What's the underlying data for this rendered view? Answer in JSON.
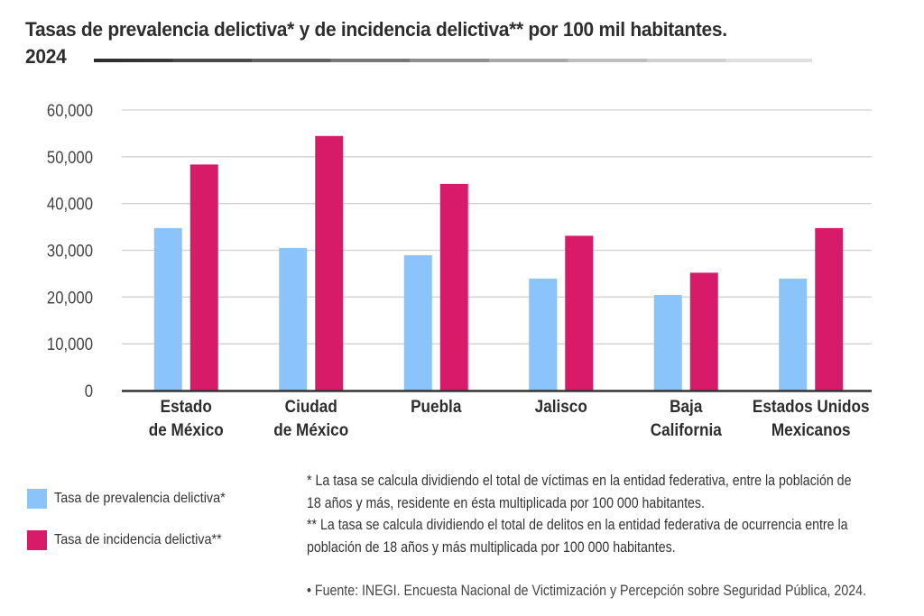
{
  "header": {
    "title": "Tasas de prevalencia delictiva* y de incidencia delictiva** por 100 mil habitantes.",
    "year": "2024"
  },
  "colors": {
    "prevalencia": "#8ac4fa",
    "incidencia": "#d81b68",
    "grid": "#d0d0d0",
    "axis": "#333333"
  },
  "chart_data": {
    "type": "bar",
    "title": "Tasas de prevalencia delictiva* y de incidencia delictiva** por 100 mil habitantes. 2024",
    "xlabel": "",
    "ylabel": "",
    "ylim": [
      0,
      60000
    ],
    "yticks": [
      0,
      10000,
      20000,
      30000,
      40000,
      50000,
      60000
    ],
    "ytick_labels": [
      "0",
      "10,000",
      "20,000",
      "30,000",
      "40,000",
      "50,000",
      "60,000"
    ],
    "grid": true,
    "legend_position": "bottom-left",
    "categories": [
      [
        "Estado",
        "de México"
      ],
      [
        "Ciudad",
        "de México"
      ],
      [
        "Puebla"
      ],
      [
        "Jalisco"
      ],
      [
        "Baja",
        "California"
      ],
      [
        "Estados Unidos",
        "Mexicanos"
      ]
    ],
    "series": [
      {
        "name": "Tasa de prevalencia delictiva*",
        "color_key": "prevalencia",
        "values": [
          34750,
          30500,
          28950,
          23950,
          20450,
          23950
        ]
      },
      {
        "name": "Tasa de incidencia delictiva**",
        "color_key": "incidencia",
        "values": [
          48350,
          54450,
          44200,
          33100,
          25200,
          34750
        ]
      }
    ]
  },
  "legend": [
    {
      "label": "Tasa de prevalencia delictiva*",
      "color_key": "prevalencia"
    },
    {
      "label": "Tasa de incidencia delictiva**",
      "color_key": "incidencia"
    }
  ],
  "notes": {
    "note1": "* La tasa se calcula dividiendo el total de víctimas en la entidad federativa, entre la población de 18 años y más, residente  en ésta multiplicada por 100 000 habitantes.",
    "note2": "** La tasa se calcula dividiendo el total de delitos en la entidad federativa de ocurrencia entre la población de 18 años y más  multiplicada por 100 000 habitantes.",
    "source": "• Fuente: INEGI. Encuesta Nacional de Victimización y Percepción sobre Seguridad Pública, 2024."
  }
}
